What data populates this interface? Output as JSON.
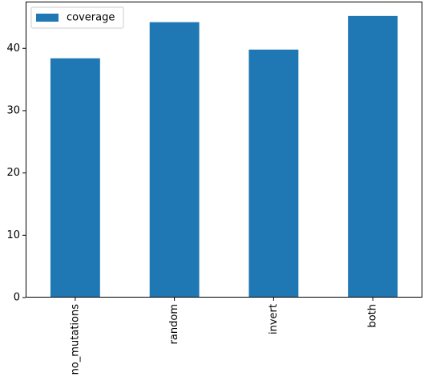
{
  "chart_data": {
    "type": "bar",
    "categories": [
      "no_mutations",
      "random",
      "invert",
      "both"
    ],
    "series": [
      {
        "name": "coverage",
        "values": [
          38.4,
          44.2,
          39.8,
          45.2
        ],
        "color": "#1f77b4"
      }
    ],
    "ylim": [
      0,
      47.5
    ],
    "yticks": [
      0,
      10,
      20,
      30,
      40
    ],
    "legend": "top-left",
    "grid": false,
    "xtick_rotation": "vertical"
  }
}
